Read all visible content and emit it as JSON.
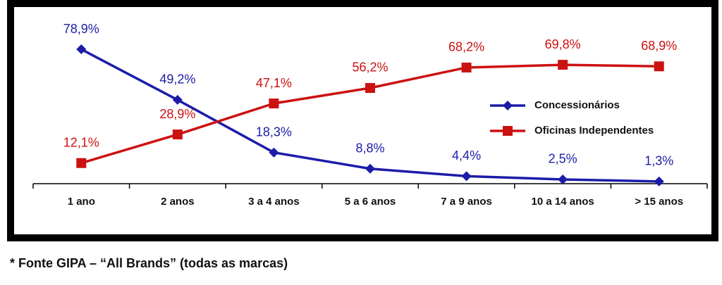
{
  "chart_data": {
    "type": "line",
    "categories": [
      "1 ano",
      "2 anos",
      "3 a 4 anos",
      "5 a 6 anos",
      "7 a 9 anos",
      "10 a 14 anos",
      "> 15 anos"
    ],
    "series": [
      {
        "name": "Concessionários",
        "color": "#1c1ca8",
        "marker": "diamond",
        "values": [
          78.9,
          49.2,
          18.3,
          8.8,
          4.4,
          2.5,
          1.3
        ],
        "value_labels": [
          "78,9%",
          "49,2%",
          "18,3%",
          "8,8%",
          "4,4%",
          "2,5%",
          "1,3%"
        ]
      },
      {
        "name": "Oficinas Independentes",
        "color": "#cc1111",
        "marker": "square",
        "values": [
          12.1,
          28.9,
          47.1,
          56.2,
          68.2,
          69.8,
          68.9
        ],
        "value_labels": [
          "12,1%",
          "28,9%",
          "47,1%",
          "56,2%",
          "68,2%",
          "69,8%",
          "68,9%"
        ]
      }
    ],
    "ylim": [
      0,
      100
    ],
    "legend": "right",
    "source": "* Fonte GIPA – “All Brands” (todas as marcas)"
  }
}
